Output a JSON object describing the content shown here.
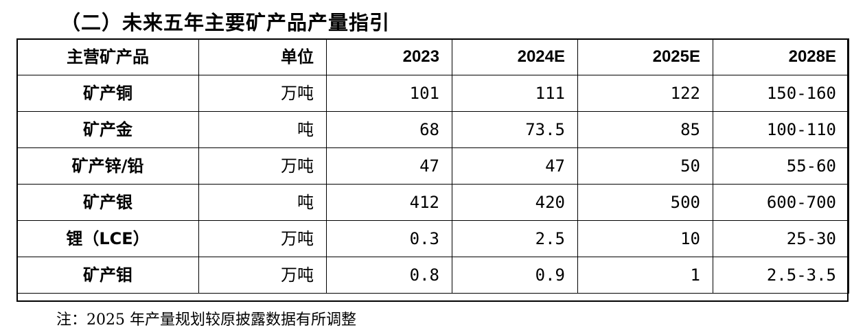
{
  "title": "（二）未来五年主要矿产品产量指引",
  "table": {
    "headers": [
      "主营矿产品",
      "单位",
      "2023",
      "2024E",
      "2025E",
      "2028E"
    ],
    "rows": [
      {
        "product": "矿产铜",
        "unit": "万吨",
        "y2023": "101",
        "y2024e": "111",
        "y2025e": "122",
        "y2028e": "150-160"
      },
      {
        "product": "矿产金",
        "unit": "吨",
        "y2023": "68",
        "y2024e": "73.5",
        "y2025e": "85",
        "y2028e": "100-110"
      },
      {
        "product": "矿产锌/铅",
        "unit": "万吨",
        "y2023": "47",
        "y2024e": "47",
        "y2025e": "50",
        "y2028e": "55-60"
      },
      {
        "product": "矿产银",
        "unit": "吨",
        "y2023": "412",
        "y2024e": "420",
        "y2025e": "500",
        "y2028e": "600-700"
      },
      {
        "product": "锂（LCE）",
        "unit": "万吨",
        "y2023": "0.3",
        "y2024e": "2.5",
        "y2025e": "10",
        "y2028e": "25-30"
      },
      {
        "product": "矿产钼",
        "unit": "万吨",
        "y2023": "0.8",
        "y2024e": "0.9",
        "y2025e": "1",
        "y2028e": "2.5-3.5"
      }
    ]
  },
  "footnote": "注：2025 年产量规划较原披露数据有所调整"
}
